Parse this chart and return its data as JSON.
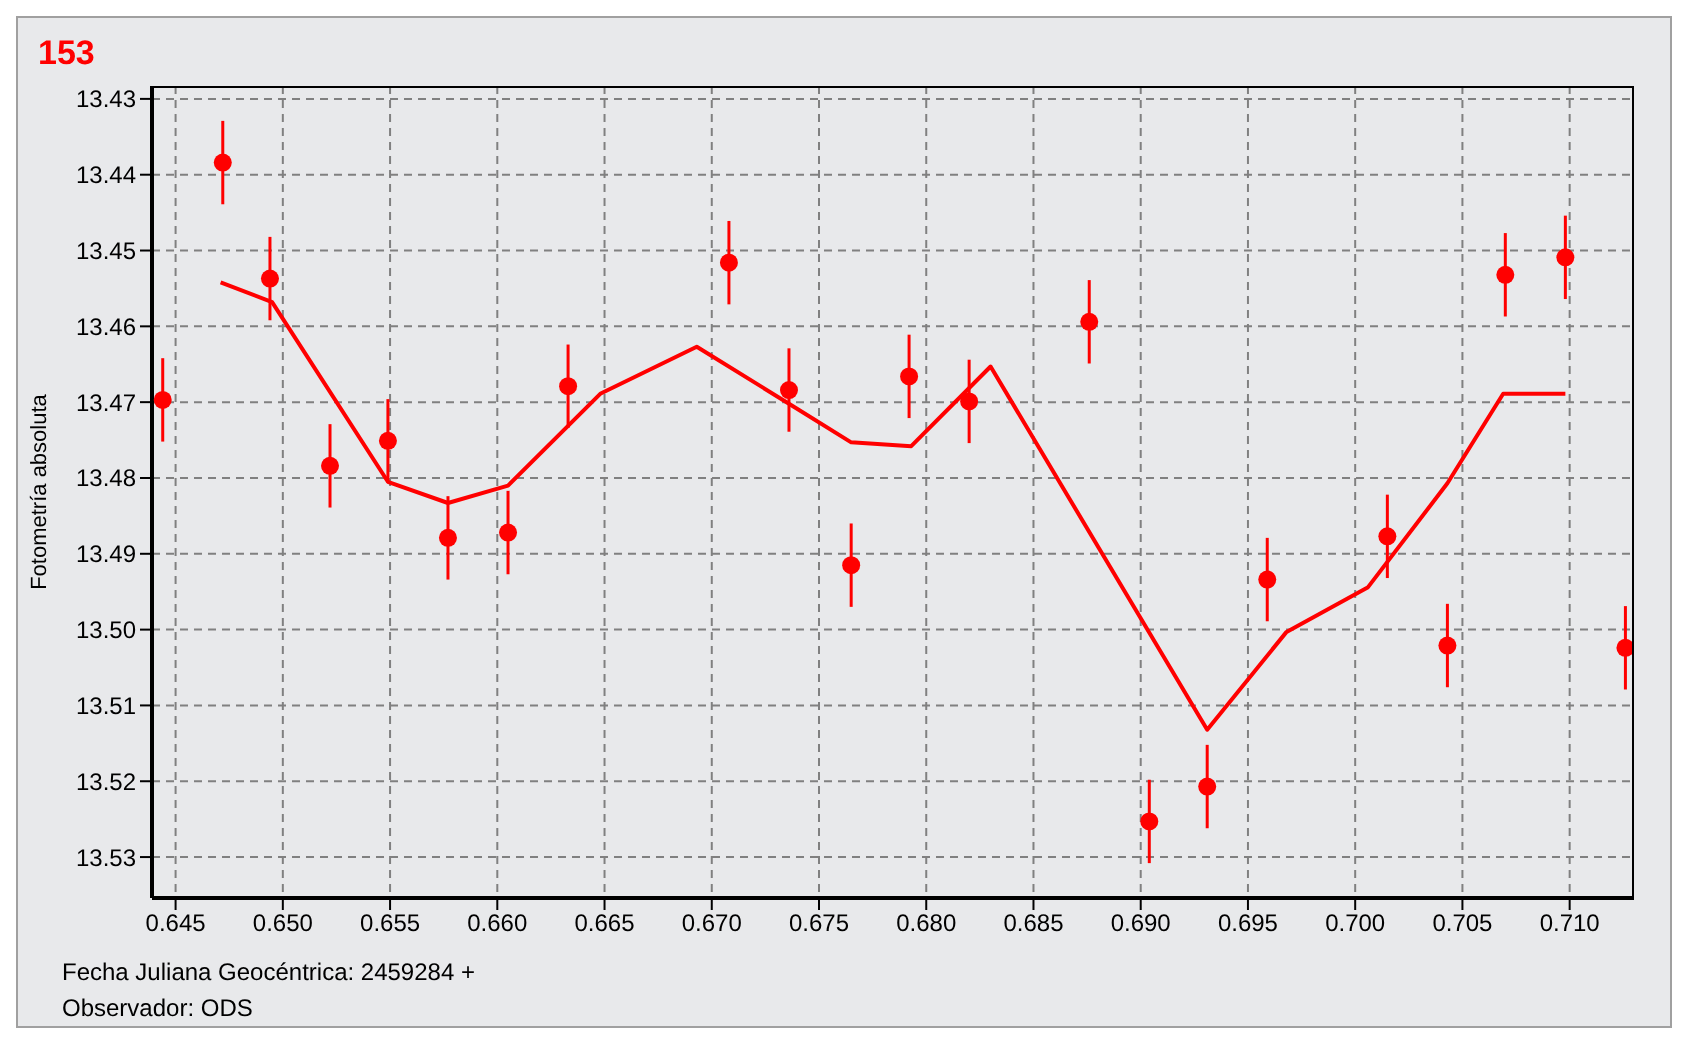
{
  "chart_data": {
    "type": "scatter",
    "title": "153",
    "xlabel": "Fecha Juliana Geocéntrica: 2459284 +",
    "ylabel": "Fotometría absoluta",
    "annotations": [
      "Observador: ODS"
    ],
    "xlim": [
      0.6439,
      0.713
    ],
    "ylim": [
      13.5354,
      13.4283
    ],
    "xticks": [
      {
        "value": 0.645,
        "label": "0.645"
      },
      {
        "value": 0.65,
        "label": "0.650"
      },
      {
        "value": 0.655,
        "label": "0.655"
      },
      {
        "value": 0.66,
        "label": "0.660"
      },
      {
        "value": 0.665,
        "label": "0.665"
      },
      {
        "value": 0.67,
        "label": "0.670"
      },
      {
        "value": 0.675,
        "label": "0.675"
      },
      {
        "value": 0.68,
        "label": "0.680"
      },
      {
        "value": 0.685,
        "label": "0.685"
      },
      {
        "value": 0.69,
        "label": "0.690"
      },
      {
        "value": 0.695,
        "label": "0.695"
      },
      {
        "value": 0.7,
        "label": "0.700"
      },
      {
        "value": 0.705,
        "label": "0.705"
      },
      {
        "value": 0.71,
        "label": "0.710"
      }
    ],
    "yticks": [
      13.43,
      13.44,
      13.45,
      13.46,
      13.47,
      13.48,
      13.49,
      {
        "value": 13.5,
        "label": "13.50"
      },
      13.51,
      13.52,
      13.53
    ],
    "grid": true,
    "marker": "circle",
    "series": [
      {
        "color": "#ff0000",
        "x": [
          0.6444,
          0.6472,
          0.6494,
          0.6522,
          0.6549,
          0.6577,
          0.6605,
          0.6633,
          0.6708,
          0.6736,
          0.6765,
          0.6792,
          0.682,
          0.6876,
          0.6904,
          0.6931,
          0.6959,
          0.7015,
          0.7043,
          0.707,
          0.7098,
          0.7126
        ],
        "values": [
          13.4697,
          13.4384,
          13.4537,
          13.4784,
          13.4751,
          13.4879,
          13.4872,
          13.4679,
          13.4516,
          13.4684,
          13.4915,
          13.4666,
          13.4699,
          13.4594,
          13.5253,
          13.5207,
          13.4934,
          13.4877,
          13.5021,
          13.4532,
          13.4509,
          13.5024
        ],
        "errors": [
          0.0055,
          0.0055,
          0.0055,
          0.0055,
          0.0055,
          0.0055,
          0.0055,
          0.0055,
          0.0055,
          0.0055,
          0.0055,
          0.0055,
          0.0055,
          0.0055,
          0.0055,
          0.0055,
          0.0055,
          0.0055,
          0.0055,
          0.0055,
          0.0055,
          0.0055
        ]
      },
      {
        "type": "line",
        "color": "#ff0000",
        "line_style": "solid",
        "marker": "none",
        "x": [
          0.6471,
          0.6495,
          0.6549,
          0.6577,
          0.6605,
          0.6648,
          0.6693,
          0.6736,
          0.6765,
          0.6793,
          0.683,
          0.6931,
          0.6968,
          0.7006,
          0.7043,
          0.7069,
          0.7098
        ],
        "values": [
          13.4542,
          13.4568,
          13.4805,
          13.4833,
          13.481,
          13.4689,
          13.4627,
          13.4702,
          13.4753,
          13.4758,
          13.4653,
          13.5132,
          13.5003,
          13.4944,
          13.4807,
          13.4689,
          13.4689
        ]
      }
    ]
  }
}
